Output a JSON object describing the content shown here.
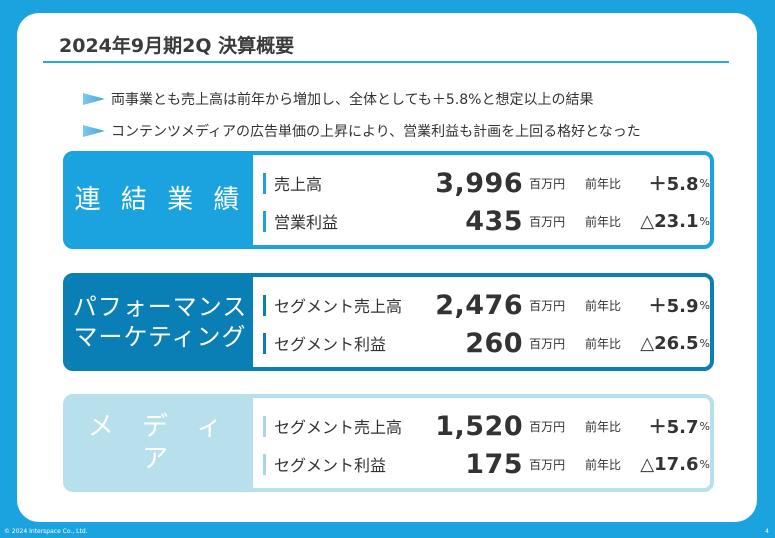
{
  "title": "2024年9月期2Q 決算概要",
  "bullets": [
    "両事業とも売上高は前年から増加し、全体としても＋5.8%と想定以上の結果",
    "コンテンツメディアの広告単価の上昇により、営業利益も計画を上回る格好となった"
  ],
  "cards": [
    {
      "category": "連 結 業 績",
      "rows": [
        {
          "label": "売上高",
          "value": "3,996",
          "unit": "百万円",
          "yoy": "前年比",
          "change": "＋5.8",
          "pct": "%"
        },
        {
          "label": "営業利益",
          "value": "435",
          "unit": "百万円",
          "yoy": "前年比",
          "change": "△23.1",
          "pct": "%"
        }
      ]
    },
    {
      "category": "パフォーマンス\nマーケティング",
      "category_lines": [
        "パフォーマンス",
        "マーケティング"
      ],
      "rows": [
        {
          "label": "セグメント売上高",
          "value": "2,476",
          "unit": "百万円",
          "yoy": "前年比",
          "change": "＋5.9",
          "pct": "%"
        },
        {
          "label": "セグメント利益",
          "value": "260",
          "unit": "百万円",
          "yoy": "前年比",
          "change": "△26.5",
          "pct": "%"
        }
      ]
    },
    {
      "category": "メ デ ィ ア",
      "rows": [
        {
          "label": "セグメント売上高",
          "value": "1,520",
          "unit": "百万円",
          "yoy": "前年比",
          "change": "＋5.7",
          "pct": "%"
        },
        {
          "label": "セグメント利益",
          "value": "175",
          "unit": "百万円",
          "yoy": "前年比",
          "change": "△17.6",
          "pct": "%"
        }
      ]
    }
  ],
  "colors": {
    "background": "#1aa3de",
    "card1": "#1aa3de",
    "card2": "#0a7fb5",
    "card3": "#b7e0ec",
    "bar1": "#1aa3de",
    "bar2": "#0a7fb5",
    "bar3": "#a7d7e6"
  },
  "footer": "© 2024 Interspace Co., Ltd.",
  "page_number": "4"
}
